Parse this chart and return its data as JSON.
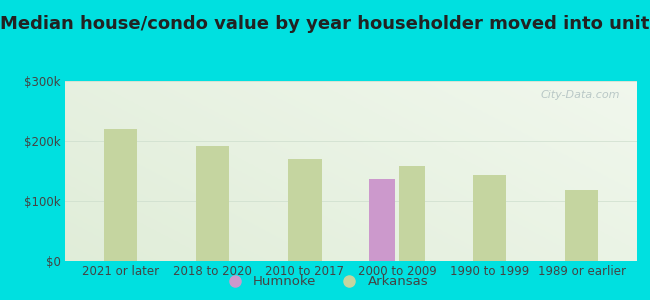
{
  "title": "Median house/condo value by year householder moved into unit",
  "categories": [
    "2021 or later",
    "2018 to 2020",
    "2010 to 2017",
    "2000 to 2009",
    "1990 to 1999",
    "1989 or earlier"
  ],
  "humnoke_values": [
    null,
    null,
    null,
    137000,
    null,
    null
  ],
  "arkansas_values": [
    220000,
    192000,
    170000,
    158000,
    143000,
    118000
  ],
  "humnoke_color": "#cc99cc",
  "arkansas_color": "#c5d5a0",
  "background_outer": "#00e0e0",
  "background_inner_topleft": "#e8f5e0",
  "background_inner_topright": "#f5faf0",
  "ylim": [
    0,
    300000
  ],
  "yticks": [
    0,
    100000,
    200000,
    300000
  ],
  "ytick_labels": [
    "$0",
    "$100k",
    "$200k",
    "$300k"
  ],
  "bar_width": 0.28,
  "watermark": "City-Data.com",
  "legend_humnoke": "Humnoke",
  "legend_arkansas": "Arkansas",
  "title_fontsize": 13,
  "tick_fontsize": 8.5,
  "legend_fontsize": 9.5,
  "title_color": "#222222",
  "tick_color": "#444444"
}
